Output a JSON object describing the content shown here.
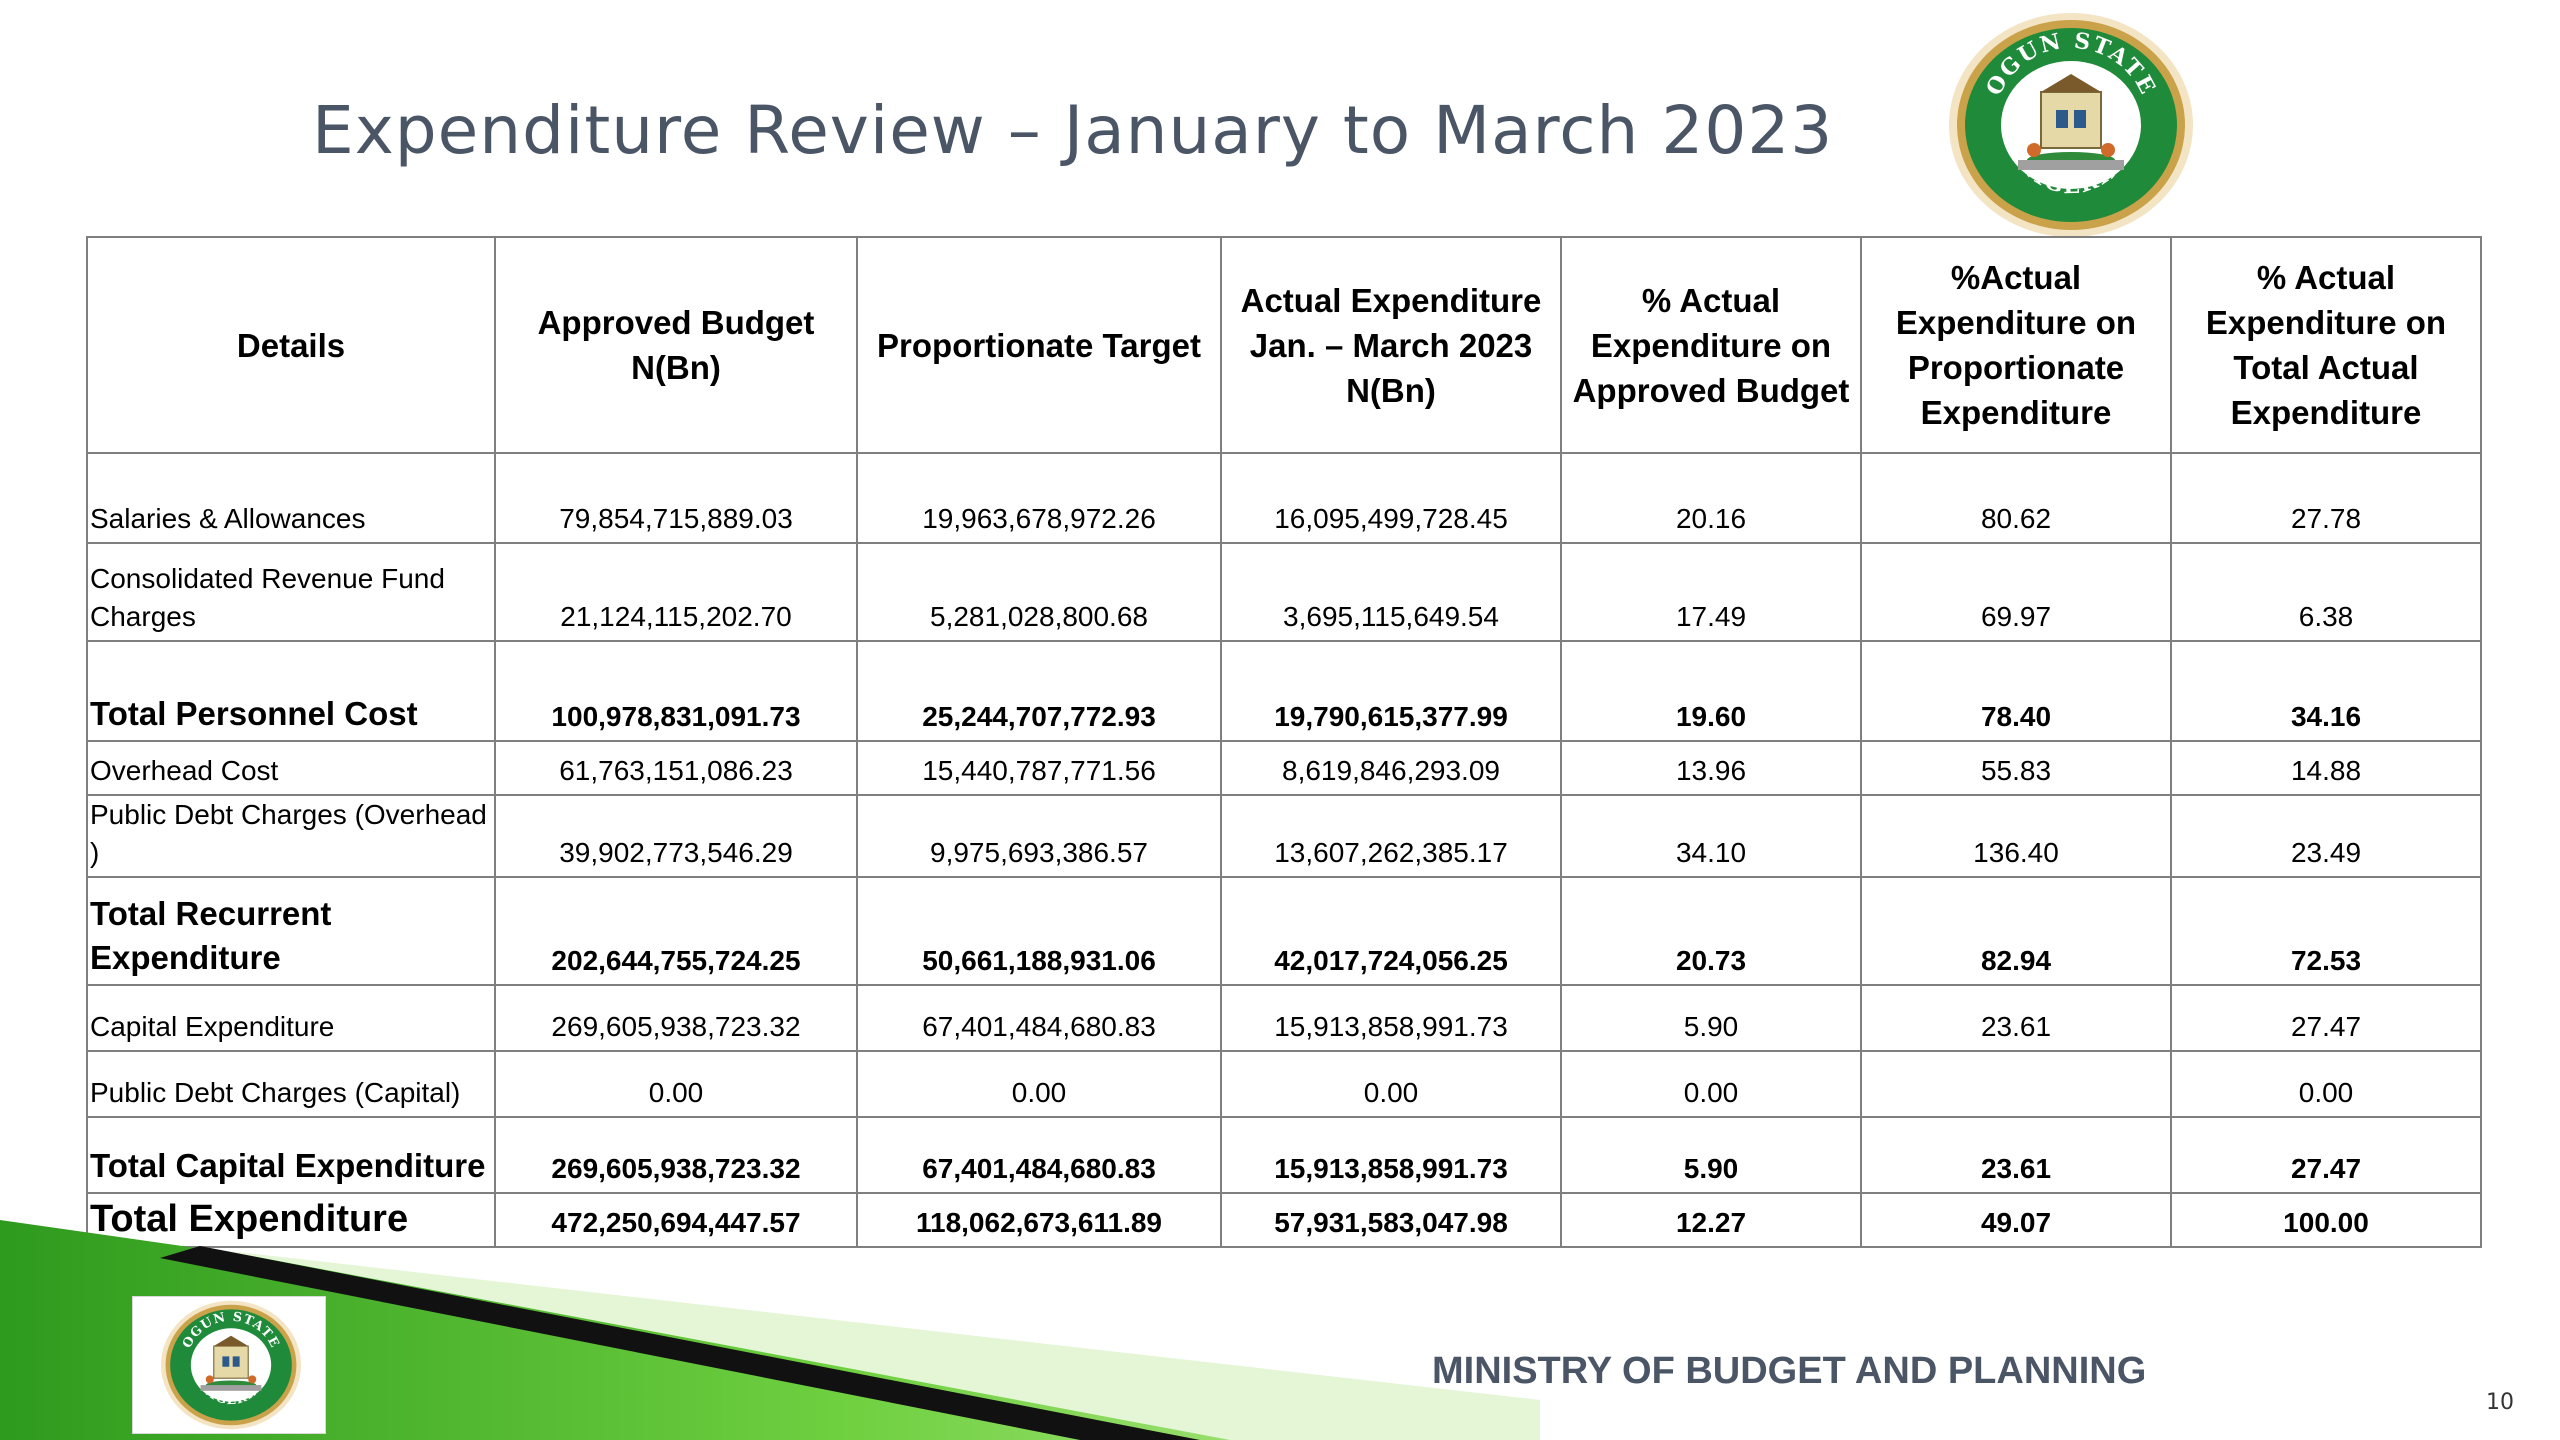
{
  "slide": {
    "title": "Expenditure Review – January to March 2023",
    "footer": "MINISTRY OF BUDGET AND PLANNING",
    "page_number": "10"
  },
  "seal": {
    "top_text": "OGUN STATE",
    "bottom_text": "NIGERIA"
  },
  "table": {
    "headers": [
      "Details",
      "Approved Budget N(Bn)",
      "Proportionate Target",
      "Actual Expenditure Jan. – March 2023 N(Bn)",
      "% Actual Expenditure on Approved Budget",
      "%Actual Expenditure on Proportionate Expenditure",
      "% Actual Expenditure on Total Actual Expenditure"
    ],
    "rows": [
      {
        "details": "Salaries & Allowances",
        "approved": "79,854,715,889.03",
        "target": "19,963,678,972.26",
        "actual": "16,095,499,728.45",
        "pct_approved": "20.16",
        "pct_proportionate": "80.62",
        "pct_total": "27.78"
      },
      {
        "details": "Consolidated Revenue Fund Charges",
        "approved": "21,124,115,202.70",
        "target": "5,281,028,800.68",
        "actual": "3,695,115,649.54",
        "pct_approved": "17.49",
        "pct_proportionate": "69.97",
        "pct_total": "6.38"
      },
      {
        "details": "Total Personnel Cost",
        "approved": "100,978,831,091.73",
        "target": "25,244,707,772.93",
        "actual": "19,790,615,377.99",
        "pct_approved": "19.60",
        "pct_proportionate": "78.40",
        "pct_total": "34.16"
      },
      {
        "details": "Overhead Cost",
        "approved": "61,763,151,086.23",
        "target": "15,440,787,771.56",
        "actual": "8,619,846,293.09",
        "pct_approved": "13.96",
        "pct_proportionate": "55.83",
        "pct_total": "14.88"
      },
      {
        "details": "Public Debt Charges (Overhead )",
        "approved": "39,902,773,546.29",
        "target": "9,975,693,386.57",
        "actual": "13,607,262,385.17",
        "pct_approved": "34.10",
        "pct_proportionate": "136.40",
        "pct_total": "23.49"
      },
      {
        "details": "Total Recurrent Expenditure",
        "approved": "202,644,755,724.25",
        "target": "50,661,188,931.06",
        "actual": "42,017,724,056.25",
        "pct_approved": "20.73",
        "pct_proportionate": "82.94",
        "pct_total": "72.53"
      },
      {
        "details": "Capital Expenditure",
        "approved": "269,605,938,723.32",
        "target": "67,401,484,680.83",
        "actual": "15,913,858,991.73",
        "pct_approved": "5.90",
        "pct_proportionate": "23.61",
        "pct_total": "27.47"
      },
      {
        "details": "Public Debt Charges (Capital)",
        "approved": "0.00",
        "target": "0.00",
        "actual": "0.00",
        "pct_approved": "0.00",
        "pct_proportionate": "",
        "pct_total": "0.00"
      },
      {
        "details": "Total Capital Expenditure",
        "approved": "269,605,938,723.32",
        "target": "67,401,484,680.83",
        "actual": "15,913,858,991.73",
        "pct_approved": "5.90",
        "pct_proportionate": "23.61",
        "pct_total": "27.47"
      },
      {
        "details": "Total Expenditure",
        "approved": "472,250,694,447.57",
        "target": "118,062,673,611.89",
        "actual": "57,931,583,047.98",
        "pct_approved": "12.27",
        "pct_proportionate": "49.07",
        "pct_total": "100.00"
      }
    ]
  },
  "colors": {
    "title": "#4a5566",
    "band_green": "#4fb82a",
    "band_light": "#c8ecb0",
    "seal_green": "#1f8a3a",
    "seal_gold": "#c9a24a"
  }
}
